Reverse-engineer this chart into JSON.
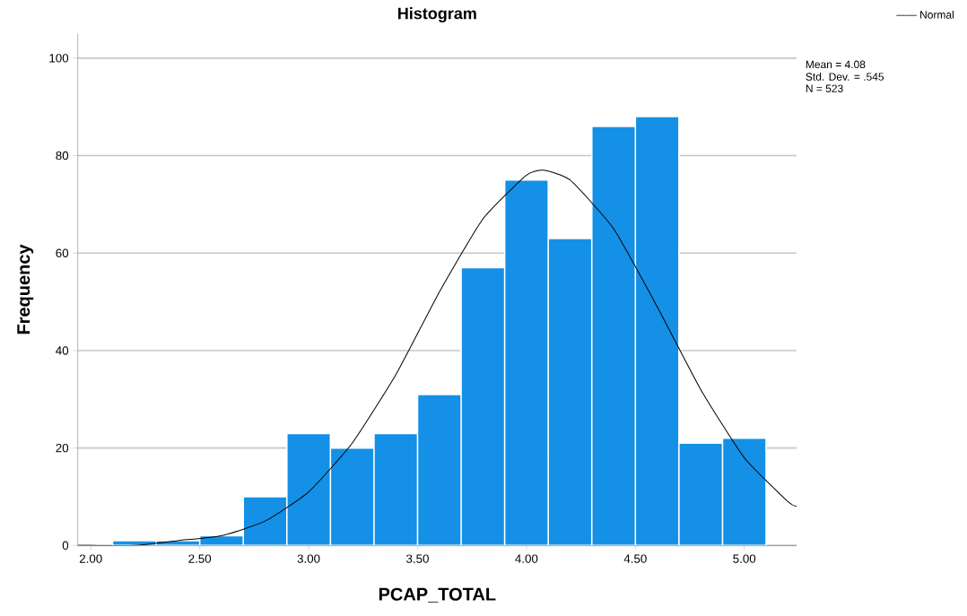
{
  "chart_data": {
    "type": "histogram",
    "title": "Histogram",
    "xlabel": "PCAP_TOTAL",
    "ylabel": "Frequency",
    "bins": [
      2.1,
      2.3,
      2.5,
      2.7,
      2.9,
      3.1,
      3.3,
      3.5,
      3.7,
      3.9,
      4.1,
      4.3,
      4.5,
      4.7,
      4.9,
      5.1
    ],
    "values": [
      1,
      1,
      2,
      10,
      23,
      20,
      23,
      31,
      57,
      75,
      63,
      86,
      88,
      21,
      22
    ],
    "color": "#1490e6",
    "series": [
      {
        "type": "line",
        "name": "Normal",
        "color": "#000000",
        "x": [
          1.94,
          2.0,
          2.2,
          2.4,
          2.6,
          2.8,
          3.0,
          3.2,
          3.4,
          3.6,
          3.8,
          4.0,
          4.08,
          4.2,
          4.4,
          4.6,
          4.8,
          5.0,
          5.2,
          5.24
        ],
        "values": [
          0,
          0,
          0,
          1,
          2,
          5,
          11,
          21,
          35,
          52,
          67,
          76,
          77,
          75,
          65,
          49,
          32,
          18,
          9,
          8
        ]
      }
    ],
    "xlim": [
      1.94,
      5.24
    ],
    "ylim": [
      0,
      105
    ],
    "xticks": [
      {
        "value": 2.0,
        "label": "2.00"
      },
      {
        "value": 2.5,
        "label": "2.50"
      },
      {
        "value": 3.0,
        "label": "3.00"
      },
      {
        "value": 3.5,
        "label": "3.50"
      },
      {
        "value": 4.0,
        "label": "4.00"
      },
      {
        "value": 4.5,
        "label": "4.50"
      },
      {
        "value": 5.0,
        "label": "5.00"
      }
    ],
    "yticks": [
      0,
      20,
      40,
      60,
      80,
      100
    ],
    "grid": "y",
    "legend": "top right",
    "annotations": [
      "Mean = 4.08",
      "Std. Dev. = .545",
      "N = 523"
    ]
  }
}
